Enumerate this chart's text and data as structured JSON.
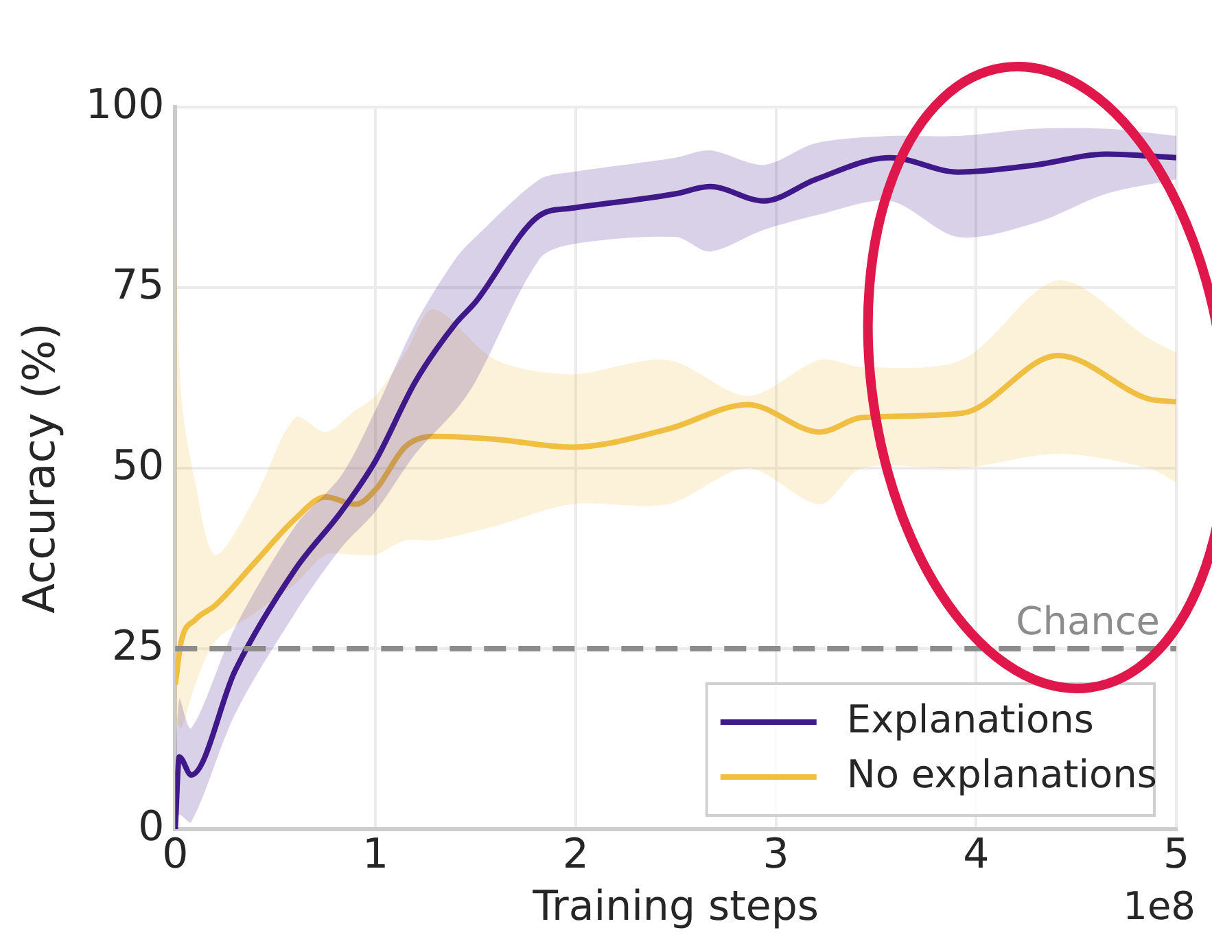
{
  "chart_data": {
    "type": "line",
    "xlabel": "Training steps",
    "ylabel": "Accuracy (%)",
    "annotations": [
      "1e8"
    ],
    "xlim": [
      0,
      5
    ],
    "xticks": [
      0,
      1,
      2,
      3,
      4,
      5
    ],
    "ylim": [
      0,
      100
    ],
    "yticks": [
      0,
      25,
      50,
      75,
      100
    ],
    "grid": true,
    "legend": "bottom right",
    "ref_lines": [
      {
        "axis": "y",
        "value": 25,
        "label": "Chance",
        "color": "#8c8c8c",
        "line_style": "dashed"
      }
    ],
    "series": [
      {
        "name": "Explanations",
        "color": "#3f1a8a",
        "x": [
          0,
          0.02,
          0.08,
          0.3,
          0.6,
          0.83,
          1,
          1.2,
          1.4,
          1.5,
          1.82,
          1.98,
          2.5,
          2.67,
          2.94,
          3.2,
          3.57,
          3.91,
          4.3,
          4.65,
          5
        ],
        "values": [
          0,
          10,
          7.5,
          22,
          36,
          44,
          51,
          62,
          70,
          73,
          85,
          86,
          88,
          89,
          87,
          90,
          93,
          91,
          92,
          93.5,
          93
        ],
        "lower": [
          0,
          2,
          1,
          16,
          30,
          39,
          44,
          52,
          58,
          62,
          79,
          81,
          82,
          80,
          83,
          85,
          87,
          82,
          84,
          88,
          90
        ],
        "upper": [
          0,
          18,
          14,
          28,
          42,
          49,
          58,
          70,
          79,
          82,
          90,
          91,
          93,
          94,
          92,
          95,
          96,
          96,
          97,
          97,
          96
        ]
      },
      {
        "name": "No explanations",
        "color": "#f0bf40",
        "x": [
          0,
          0.03,
          0.1,
          0.2,
          0.4,
          0.6,
          0.75,
          0.9,
          1,
          1.15,
          1.29,
          1.6,
          1.98,
          2.46,
          2.86,
          3.22,
          3.43,
          3.93,
          4.41,
          4.86,
          5
        ],
        "values": [
          20,
          26,
          29,
          31,
          37,
          43,
          46,
          45,
          47,
          53,
          54.4,
          54,
          52.9,
          55.4,
          58.8,
          55,
          57,
          57.6,
          65.6,
          59.6,
          59.2
        ],
        "lower": [
          15,
          14,
          20,
          26,
          30,
          34,
          38,
          38,
          38,
          40,
          40,
          42,
          45,
          45,
          50,
          45,
          50,
          50,
          52,
          50,
          48
        ],
        "upper": [
          85,
          60,
          48,
          38,
          46,
          57,
          55,
          58,
          60,
          66,
          72,
          65,
          63,
          65,
          60,
          65,
          64,
          65,
          76,
          68,
          66
        ]
      }
    ]
  }
}
